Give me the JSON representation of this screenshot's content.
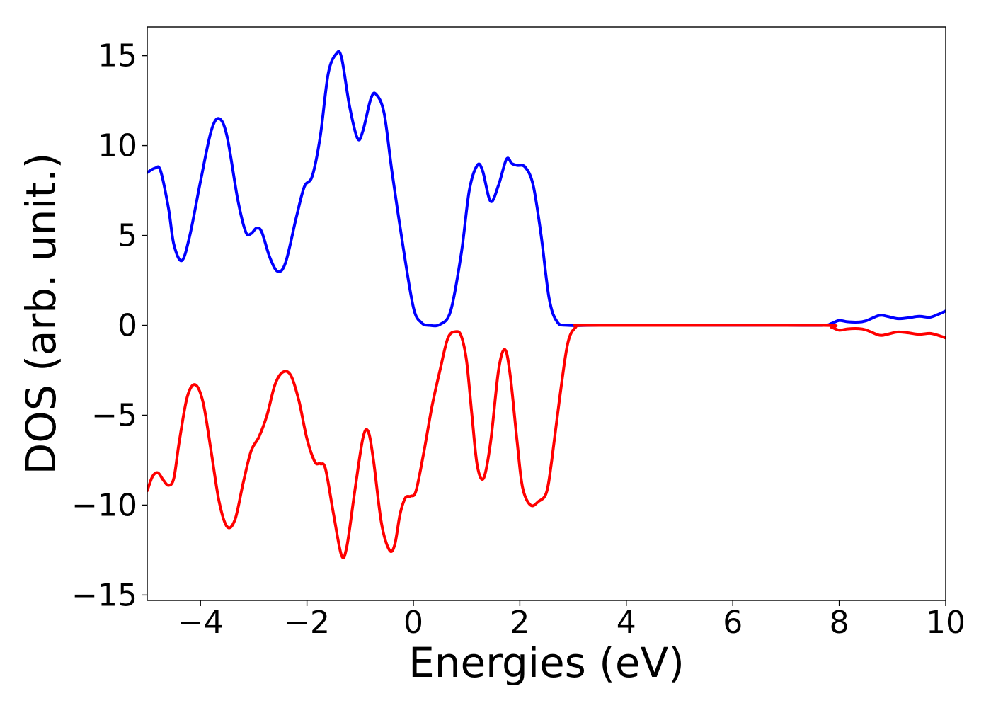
{
  "chart_data": {
    "type": "line",
    "title": "",
    "xlabel": "Energies (eV)",
    "ylabel": "DOS (arb. unit.)",
    "xlim": [
      -5,
      10
    ],
    "ylim": [
      -15.3,
      16.6
    ],
    "grid": false,
    "xticks": [
      -4,
      -2,
      0,
      2,
      4,
      6,
      8,
      10
    ],
    "xtick_labels": [
      "−4",
      "−2",
      "0",
      "2",
      "4",
      "6",
      "8",
      "10"
    ],
    "yticks": [
      -15,
      -10,
      -5,
      0,
      5,
      10,
      15
    ],
    "ytick_labels": [
      "−15",
      "−10",
      "−5",
      "0",
      "5",
      "10",
      "15"
    ],
    "series": [
      {
        "color": "#0000ff",
        "points": [
          [
            -5.0,
            8.5
          ],
          [
            -4.85,
            8.75
          ],
          [
            -4.75,
            8.6
          ],
          [
            -4.6,
            6.5
          ],
          [
            -4.5,
            4.5
          ],
          [
            -4.35,
            3.6
          ],
          [
            -4.2,
            5.0
          ],
          [
            -4.0,
            8.0
          ],
          [
            -3.8,
            10.8
          ],
          [
            -3.65,
            11.5
          ],
          [
            -3.5,
            10.5
          ],
          [
            -3.3,
            7.0
          ],
          [
            -3.15,
            5.2
          ],
          [
            -3.05,
            5.1
          ],
          [
            -2.95,
            5.4
          ],
          [
            -2.85,
            5.2
          ],
          [
            -2.7,
            3.8
          ],
          [
            -2.55,
            3.0
          ],
          [
            -2.4,
            3.5
          ],
          [
            -2.2,
            6.0
          ],
          [
            -2.05,
            7.7
          ],
          [
            -1.9,
            8.3
          ],
          [
            -1.75,
            10.5
          ],
          [
            -1.6,
            14.0
          ],
          [
            -1.45,
            15.1
          ],
          [
            -1.35,
            14.9
          ],
          [
            -1.2,
            12.2
          ],
          [
            -1.05,
            10.4
          ],
          [
            -0.95,
            10.8
          ],
          [
            -0.8,
            12.6
          ],
          [
            -0.7,
            12.85
          ],
          [
            -0.55,
            11.8
          ],
          [
            -0.4,
            8.5
          ],
          [
            -0.2,
            4.5
          ],
          [
            0.0,
            1.0
          ],
          [
            0.15,
            0.15
          ],
          [
            0.3,
            0.0
          ],
          [
            0.5,
            0.05
          ],
          [
            0.7,
            0.8
          ],
          [
            0.9,
            4.0
          ],
          [
            1.05,
            7.5
          ],
          [
            1.2,
            8.9
          ],
          [
            1.3,
            8.6
          ],
          [
            1.45,
            6.9
          ],
          [
            1.6,
            7.8
          ],
          [
            1.75,
            9.25
          ],
          [
            1.85,
            9.0
          ],
          [
            1.95,
            8.9
          ],
          [
            2.1,
            8.8
          ],
          [
            2.25,
            7.8
          ],
          [
            2.4,
            5.0
          ],
          [
            2.55,
            1.5
          ],
          [
            2.7,
            0.2
          ],
          [
            2.9,
            0.0
          ],
          [
            3.5,
            0.0
          ],
          [
            5.0,
            0.0
          ],
          [
            7.0,
            0.0
          ],
          [
            7.7,
            0.0
          ],
          [
            7.85,
            0.1
          ],
          [
            8.0,
            0.27
          ],
          [
            8.15,
            0.2
          ],
          [
            8.35,
            0.18
          ],
          [
            8.5,
            0.25
          ],
          [
            8.75,
            0.55
          ],
          [
            8.9,
            0.5
          ],
          [
            9.1,
            0.37
          ],
          [
            9.3,
            0.42
          ],
          [
            9.5,
            0.5
          ],
          [
            9.7,
            0.45
          ],
          [
            9.85,
            0.6
          ],
          [
            10.0,
            0.8
          ]
        ]
      },
      {
        "color": "#ff0000",
        "points": [
          [
            -5.0,
            -9.2
          ],
          [
            -4.9,
            -8.4
          ],
          [
            -4.8,
            -8.2
          ],
          [
            -4.7,
            -8.6
          ],
          [
            -4.6,
            -8.9
          ],
          [
            -4.5,
            -8.5
          ],
          [
            -4.4,
            -6.5
          ],
          [
            -4.25,
            -4.0
          ],
          [
            -4.1,
            -3.3
          ],
          [
            -3.95,
            -4.3
          ],
          [
            -3.8,
            -7.0
          ],
          [
            -3.65,
            -9.8
          ],
          [
            -3.5,
            -11.2
          ],
          [
            -3.35,
            -10.8
          ],
          [
            -3.2,
            -8.8
          ],
          [
            -3.05,
            -7.0
          ],
          [
            -2.9,
            -6.2
          ],
          [
            -2.75,
            -5.0
          ],
          [
            -2.6,
            -3.3
          ],
          [
            -2.45,
            -2.6
          ],
          [
            -2.3,
            -2.8
          ],
          [
            -2.15,
            -4.2
          ],
          [
            -2.0,
            -6.3
          ],
          [
            -1.85,
            -7.6
          ],
          [
            -1.75,
            -7.7
          ],
          [
            -1.65,
            -8.0
          ],
          [
            -1.5,
            -10.5
          ],
          [
            -1.35,
            -12.8
          ],
          [
            -1.25,
            -12.3
          ],
          [
            -1.1,
            -9.2
          ],
          [
            -0.95,
            -6.3
          ],
          [
            -0.85,
            -5.9
          ],
          [
            -0.75,
            -7.5
          ],
          [
            -0.6,
            -11.0
          ],
          [
            -0.45,
            -12.5
          ],
          [
            -0.35,
            -12.2
          ],
          [
            -0.25,
            -10.5
          ],
          [
            -0.15,
            -9.6
          ],
          [
            -0.05,
            -9.5
          ],
          [
            0.05,
            -9.2
          ],
          [
            0.2,
            -7.0
          ],
          [
            0.35,
            -4.5
          ],
          [
            0.5,
            -2.5
          ],
          [
            0.65,
            -0.7
          ],
          [
            0.8,
            -0.35
          ],
          [
            0.9,
            -0.6
          ],
          [
            1.0,
            -2.0
          ],
          [
            1.1,
            -5.0
          ],
          [
            1.2,
            -7.8
          ],
          [
            1.32,
            -8.5
          ],
          [
            1.45,
            -6.5
          ],
          [
            1.6,
            -2.5
          ],
          [
            1.72,
            -1.35
          ],
          [
            1.82,
            -2.8
          ],
          [
            1.95,
            -6.5
          ],
          [
            2.05,
            -9.0
          ],
          [
            2.2,
            -10.0
          ],
          [
            2.35,
            -9.8
          ],
          [
            2.5,
            -9.3
          ],
          [
            2.6,
            -7.5
          ],
          [
            2.75,
            -4.0
          ],
          [
            2.9,
            -1.0
          ],
          [
            3.05,
            -0.1
          ],
          [
            3.2,
            0.0
          ],
          [
            5.0,
            0.0
          ],
          [
            7.7,
            0.0
          ],
          [
            7.85,
            -0.1
          ],
          [
            8.0,
            -0.27
          ],
          [
            8.15,
            -0.2
          ],
          [
            8.35,
            -0.18
          ],
          [
            8.5,
            -0.25
          ],
          [
            8.75,
            -0.55
          ],
          [
            8.9,
            -0.5
          ],
          [
            9.1,
            -0.37
          ],
          [
            9.3,
            -0.42
          ],
          [
            9.5,
            -0.5
          ],
          [
            9.7,
            -0.45
          ],
          [
            9.85,
            -0.55
          ],
          [
            10.0,
            -0.7
          ]
        ]
      }
    ]
  }
}
